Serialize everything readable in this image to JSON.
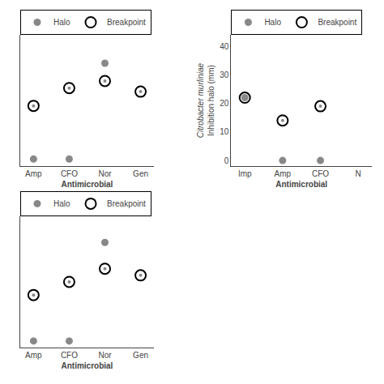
{
  "chart_data": [
    {
      "type": "scatter",
      "xlabel": "Antimicrobial",
      "categories": [
        "Amp",
        "CFO",
        "Nor",
        "Gen"
      ],
      "series": [
        {
          "name": "Halo",
          "color": "#888888",
          "marker": "circle",
          "values": [
            0,
            0,
            27,
            null
          ]
        },
        {
          "name": "Breakpoint",
          "color": "#000000",
          "marker": "circle-open",
          "values": [
            15,
            20,
            22,
            19
          ]
        }
      ],
      "ylim": [
        -2,
        35
      ],
      "tick_labels": "x",
      "grid": false,
      "legend": "upper left"
    },
    {
      "type": "scatter",
      "xlabel": "Antimicrobial",
      "ylabel": "Inhibition halo (mm)",
      "annotations": [
        "Citrobacter murliniae"
      ],
      "categories": [
        "Imp",
        "Amp",
        "CFO",
        "N"
      ],
      "series": [
        {
          "name": "Halo",
          "color": "#888888",
          "marker": "circle",
          "values": [
            22,
            0,
            0,
            null
          ]
        },
        {
          "name": "Breakpoint",
          "color": "#000000",
          "marker": "circle-open",
          "values": [
            22,
            14,
            19,
            null
          ]
        }
      ],
      "ylim": [
        -2,
        44
      ],
      "yticks": [
        0,
        10,
        20,
        30,
        40
      ],
      "grid": false,
      "legend": "upper left"
    },
    {
      "type": "scatter",
      "xlabel": "Antimicrobial",
      "categories": [
        "Amp",
        "CFO",
        "Nor",
        "Gen"
      ],
      "series": [
        {
          "name": "Halo",
          "color": "#888888",
          "marker": "circle",
          "values": [
            0,
            0,
            30,
            null
          ]
        },
        {
          "name": "Breakpoint",
          "color": "#000000",
          "marker": "circle-open",
          "values": [
            14,
            18,
            22,
            20
          ]
        }
      ],
      "ylim": [
        -2,
        38
      ],
      "tick_labels": "x",
      "grid": false,
      "legend": "upper left"
    }
  ]
}
